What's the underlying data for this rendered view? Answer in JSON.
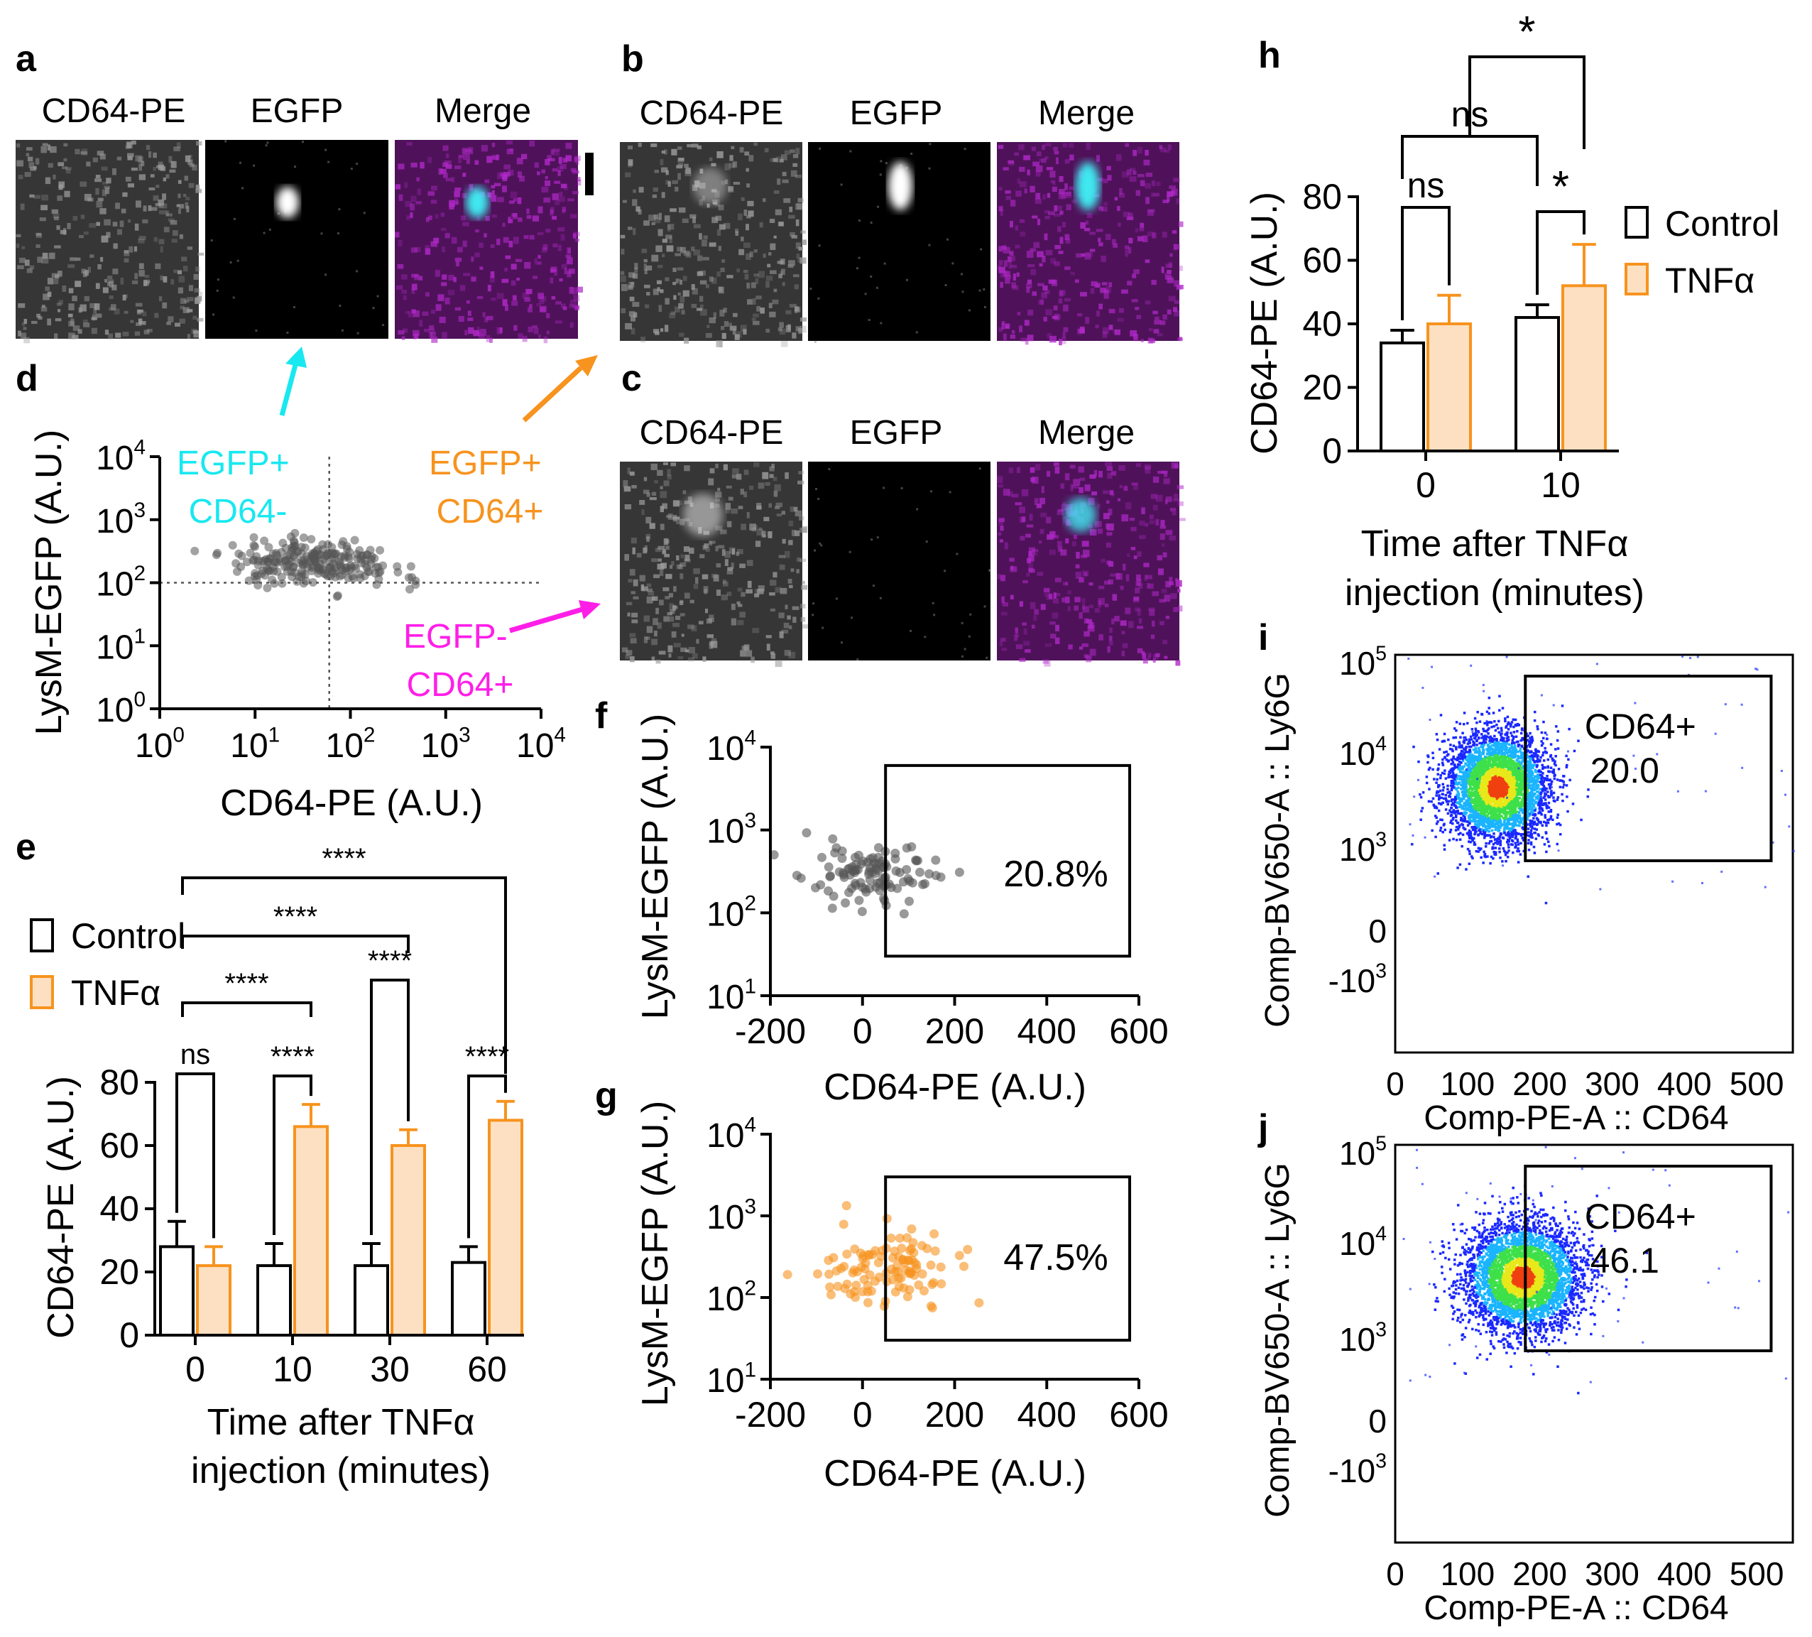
{
  "panel_letters": {
    "a": "a",
    "b": "b",
    "c": "c",
    "d": "d",
    "e": "e",
    "f": "f",
    "g": "g",
    "h": "h",
    "i": "i",
    "j": "j"
  },
  "micrographs": {
    "labels": [
      "CD64-PE",
      "EGFP",
      "Merge"
    ],
    "colors": {
      "gray": "#9a9a9a",
      "magenta": "#b028c8",
      "cyan": "#40e8f0"
    }
  },
  "colors": {
    "control": "#000000",
    "tnf_stroke": "#f7931e",
    "tnf_fill": "#fde0c2",
    "cyan": "#18e8f0",
    "orange": "#f7931e",
    "magenta": "#ff1ee8",
    "gray_pt": "#555555"
  },
  "chart_data": [
    {
      "panel": "d",
      "type": "scatter",
      "xlabel": "CD64-PE (A.U.)",
      "ylabel": "LysM-EGFP (A.U.)",
      "x_scale": "log",
      "y_scale": "log",
      "xlim": [
        1,
        10000
      ],
      "ylim": [
        1,
        10000
      ],
      "x_ticks": [
        {
          "b": "10",
          "e": "0"
        },
        {
          "b": "10",
          "e": "1"
        },
        {
          "b": "10",
          "e": "2"
        },
        {
          "b": "10",
          "e": "3"
        },
        {
          "b": "10",
          "e": "4"
        }
      ],
      "y_ticks": [
        {
          "b": "10",
          "e": "0"
        },
        {
          "b": "10",
          "e": "1"
        },
        {
          "b": "10",
          "e": "2"
        },
        {
          "b": "10",
          "e": "3"
        },
        {
          "b": "10",
          "e": "4"
        }
      ],
      "threshold_x": 60,
      "threshold_y": 100,
      "quadrant_labels": [
        {
          "line1": "EGFP+",
          "line2": "CD64-",
          "color": "#18e8f0"
        },
        {
          "line1": "EGFP+",
          "line2": "CD64+",
          "color": "#f7931e"
        },
        {
          "line1": "EGFP-",
          "line2": "CD64+",
          "color": "#ff1ee8"
        }
      ],
      "cluster": {
        "center_x": 40,
        "center_y": 220,
        "count": 240
      }
    },
    {
      "panel": "e",
      "type": "bar",
      "categories": [
        "0",
        "10",
        "30",
        "60"
      ],
      "series": [
        {
          "name": "Control",
          "values": [
            28,
            22,
            22,
            23
          ],
          "errors": [
            8,
            7,
            7,
            5
          ]
        },
        {
          "name": "TNFα",
          "values": [
            22,
            66,
            60,
            68
          ],
          "errors": [
            6,
            7,
            5,
            6
          ]
        }
      ],
      "ylabel": "CD64-PE (A.U.)",
      "xlabel_line1": "Time after TNFα",
      "xlabel_line2": "injection (minutes)",
      "ylim": [
        0,
        80
      ],
      "y_ticks": [
        "0",
        "20",
        "40",
        "60",
        "80"
      ],
      "significance": [
        {
          "label": "ns",
          "type": "within",
          "group": 0
        },
        {
          "label": "****",
          "type": "within",
          "group": 1
        },
        {
          "label": "****",
          "type": "within",
          "group": 2
        },
        {
          "label": "****",
          "type": "within",
          "group": 3
        },
        {
          "label": "****",
          "type": "across",
          "to_group": 1
        },
        {
          "label": "****",
          "type": "across",
          "to_group": 2
        },
        {
          "label": "****",
          "type": "across",
          "to_group": 3
        }
      ]
    },
    {
      "panel": "f",
      "type": "scatter",
      "xlabel": "CD64-PE (A.U.)",
      "ylabel": "LysM-EGFP (A.U.)",
      "xlim": [
        -200,
        600
      ],
      "x_ticks": [
        "-200",
        "0",
        "200",
        "400",
        "600"
      ],
      "y_scale": "log",
      "ylim": [
        10,
        10000
      ],
      "y_ticks": [
        {
          "b": "10",
          "e": "1"
        },
        {
          "b": "10",
          "e": "2"
        },
        {
          "b": "10",
          "e": "3"
        },
        {
          "b": "10",
          "e": "4"
        }
      ],
      "gate": {
        "x": [
          50,
          580
        ],
        "y": [
          30,
          6000
        ],
        "label": "20.8%"
      },
      "cluster": {
        "center_x": 20,
        "center_y": 300,
        "count": 110,
        "color": "#555555"
      }
    },
    {
      "panel": "g",
      "type": "scatter",
      "xlabel": "CD64-PE (A.U.)",
      "ylabel": "LysM-EGFP (A.U.)",
      "xlim": [
        -200,
        600
      ],
      "x_ticks": [
        "-200",
        "0",
        "200",
        "400",
        "600"
      ],
      "y_scale": "log",
      "ylim": [
        10,
        10000
      ],
      "y_ticks": [
        {
          "b": "10",
          "e": "1"
        },
        {
          "b": "10",
          "e": "2"
        },
        {
          "b": "10",
          "e": "3"
        },
        {
          "b": "10",
          "e": "4"
        }
      ],
      "gate": {
        "x": [
          50,
          580
        ],
        "y": [
          30,
          3000
        ],
        "label": "47.5%"
      },
      "cluster": {
        "center_x": 50,
        "center_y": 250,
        "count": 110,
        "color": "#f7931e"
      }
    },
    {
      "panel": "h",
      "type": "bar",
      "categories": [
        "0",
        "10"
      ],
      "series": [
        {
          "name": "Control",
          "values": [
            34,
            42
          ],
          "errors": [
            4,
            4
          ]
        },
        {
          "name": "TNFα",
          "values": [
            40,
            52
          ],
          "errors": [
            9,
            13
          ]
        }
      ],
      "ylabel": "CD64-PE (A.U.)",
      "xlabel_line1": "Time after TNFα",
      "xlabel_line2": "injection (minutes)",
      "ylim": [
        0,
        80
      ],
      "y_ticks": [
        "0",
        "20",
        "40",
        "60",
        "80"
      ],
      "legend": [
        "Control",
        "TNFα"
      ],
      "significance": [
        {
          "label": "ns",
          "type": "within",
          "group": 0
        },
        {
          "label": "*",
          "type": "within",
          "group": 1
        },
        {
          "label": "ns",
          "type": "across_control"
        },
        {
          "label": "*",
          "type": "across_tnf"
        }
      ]
    },
    {
      "panel": "i",
      "type": "heatmap",
      "xlabel": "Comp-PE-A :: CD64",
      "ylabel": "Comp-BV650-A :: Ly6G",
      "xlim": [
        0,
        550
      ],
      "x_ticks": [
        "0",
        "100",
        "200",
        "300",
        "400",
        "500"
      ],
      "y_ticks": [
        {
          "b": "10",
          "e": "5"
        },
        {
          "b": "10",
          "e": "4"
        },
        {
          "b": "10",
          "e": "3"
        },
        {
          "b": "0",
          "e": ""
        },
        {
          "b": "-10",
          "e": "3"
        }
      ],
      "gate_label": "CD64+",
      "gate_value": "20.0",
      "cluster": {
        "center_x": 140,
        "sd_x": 35,
        "count": 4200
      }
    },
    {
      "panel": "j",
      "type": "heatmap",
      "xlabel": "Comp-PE-A :: CD64",
      "ylabel": "Comp-BV650-A :: Ly6G",
      "xlim": [
        0,
        550
      ],
      "x_ticks": [
        "0",
        "100",
        "200",
        "300",
        "400",
        "500"
      ],
      "y_ticks": [
        {
          "b": "10",
          "e": "5"
        },
        {
          "b": "10",
          "e": "4"
        },
        {
          "b": "10",
          "e": "3"
        },
        {
          "b": "0",
          "e": ""
        },
        {
          "b": "-10",
          "e": "3"
        }
      ],
      "gate_label": "CD64+",
      "gate_value": "46.1",
      "cluster": {
        "center_x": 175,
        "sd_x": 40,
        "count": 4200
      }
    }
  ]
}
